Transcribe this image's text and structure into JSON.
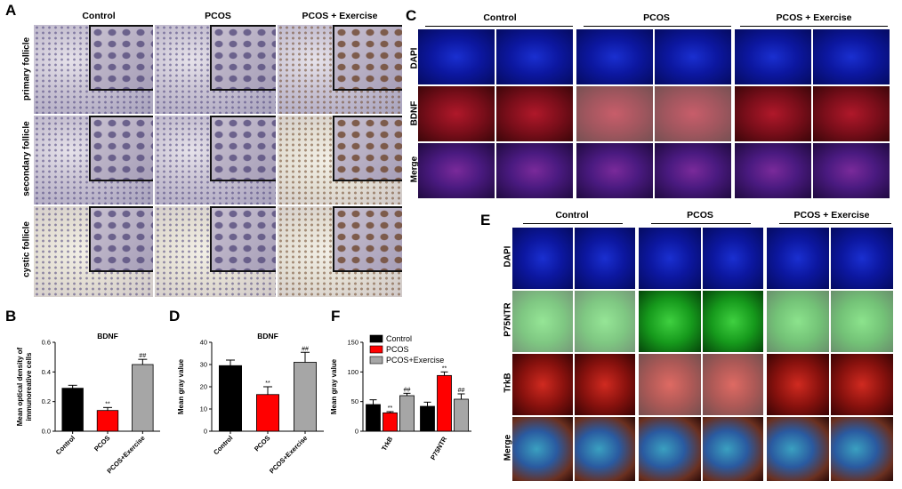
{
  "panels": {
    "A": "A",
    "B": "B",
    "C": "C",
    "D": "D",
    "E": "E",
    "F": "F"
  },
  "panelA": {
    "columns": [
      "Control",
      "PCOS",
      "PCOS + Exercise"
    ],
    "rows": [
      "primary follicle",
      "secondary follicle",
      "cystic follicle"
    ]
  },
  "panelC": {
    "columns": [
      "Control",
      "PCOS",
      "PCOS + Exercise"
    ],
    "rows": [
      "DAPI",
      "BDNF",
      "Merge"
    ]
  },
  "panelE": {
    "columns": [
      "Control",
      "PCOS",
      "PCOS + Exercise"
    ],
    "rows": [
      "DAPI",
      "P75NTR",
      "TrkB",
      "Merge"
    ]
  },
  "colors": {
    "control": "#000000",
    "pcos": "#ff0000",
    "exercise": "#a6a6a6"
  },
  "chart_data": [
    {
      "id": "B",
      "type": "bar",
      "title": "BDNF",
      "ylabel": "Mean optical density of immunoreative cells",
      "ylabel_lines": [
        "Mean optical density of",
        "immunoreative cells"
      ],
      "categories": [
        "Control",
        "PCOS",
        "PCOS+Exercise"
      ],
      "values": [
        0.29,
        0.14,
        0.45
      ],
      "errors": [
        0.02,
        0.02,
        0.035
      ],
      "significance": [
        "",
        "**",
        "##"
      ],
      "ylim": [
        0,
        0.6
      ],
      "yticks": [
        0.0,
        0.2,
        0.4,
        0.6
      ],
      "ytick_labels": [
        "0.0",
        "0.2",
        "0.4",
        "0.6"
      ]
    },
    {
      "id": "D",
      "type": "bar",
      "title": "BDNF",
      "ylabel": "Mean gray value",
      "categories": [
        "Control",
        "PCOS",
        "PCOS+Exercise"
      ],
      "values": [
        29.5,
        16.5,
        31
      ],
      "errors": [
        2.5,
        3.5,
        4.5
      ],
      "significance": [
        "",
        "**",
        "##"
      ],
      "ylim": [
        0,
        40
      ],
      "yticks": [
        0,
        10,
        20,
        30,
        40
      ],
      "ytick_labels": [
        "0",
        "10",
        "20",
        "30",
        "40"
      ]
    },
    {
      "id": "F",
      "type": "bar",
      "title": "",
      "ylabel": "Mean gray value",
      "categories": [
        "TrkB",
        "P75NTR"
      ],
      "series": [
        {
          "name": "Control",
          "values": [
            45,
            42
          ],
          "errors": [
            8,
            7
          ],
          "significance": [
            "",
            ""
          ]
        },
        {
          "name": "PCOS",
          "values": [
            31,
            94
          ],
          "errors": [
            2,
            6
          ],
          "significance": [
            "**",
            "**"
          ]
        },
        {
          "name": "PCOS+Exercise",
          "values": [
            60,
            54
          ],
          "errors": [
            4,
            9
          ],
          "significance": [
            "##",
            "##"
          ]
        }
      ],
      "ylim": [
        0,
        150
      ],
      "yticks": [
        0,
        50,
        100,
        150
      ],
      "ytick_labels": [
        "0",
        "50",
        "100",
        "150"
      ],
      "legend": "top-left"
    }
  ]
}
